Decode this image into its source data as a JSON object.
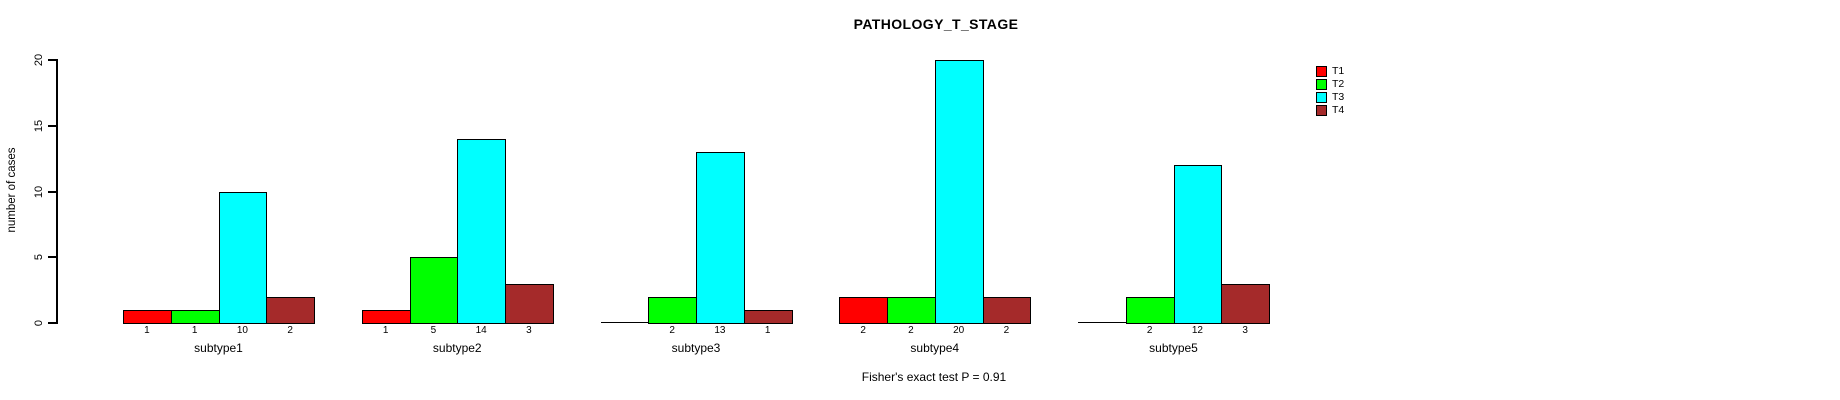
{
  "chart_data": {
    "type": "bar",
    "grouped": true,
    "title": "PATHOLOGY_T_STAGE",
    "xlabel": "",
    "ylabel": "number of cases",
    "ylim": [
      0,
      20
    ],
    "yticks": [
      0,
      5,
      10,
      15,
      20
    ],
    "grid": false,
    "legend_position": "right-top",
    "annotation": "Fisher's exact test P = 0.91",
    "bar_border_color": "#000000",
    "background_color": "#FFFFFF",
    "categories": [
      "subtype1",
      "subtype2",
      "subtype3",
      "subtype4",
      "subtype5"
    ],
    "series": [
      {
        "name": "T1",
        "color": "#FF0000",
        "values": [
          1,
          1,
          0,
          2,
          0
        ]
      },
      {
        "name": "T2",
        "color": "#00FF00",
        "values": [
          1,
          5,
          2,
          2,
          2
        ]
      },
      {
        "name": "T3",
        "color": "#00FFFF",
        "values": [
          10,
          14,
          13,
          20,
          12
        ]
      },
      {
        "name": "T4",
        "color": "#A52A2A",
        "values": [
          2,
          3,
          1,
          2,
          3
        ]
      }
    ],
    "value_labels": {
      "subtype1": [
        1,
        1,
        10,
        2
      ],
      "subtype2": [
        1,
        5,
        14,
        3
      ],
      "subtype3": [
        0,
        2,
        13,
        1
      ],
      "subtype4": [
        2,
        2,
        20,
        2
      ],
      "subtype5": [
        0,
        2,
        12,
        3
      ]
    }
  },
  "legend": {
    "items": [
      {
        "label": "T1",
        "color": "#FF0000"
      },
      {
        "label": "T2",
        "color": "#00FF00"
      },
      {
        "label": "T3",
        "color": "#00FFFF"
      },
      {
        "label": "T4",
        "color": "#A52A2A"
      }
    ]
  }
}
